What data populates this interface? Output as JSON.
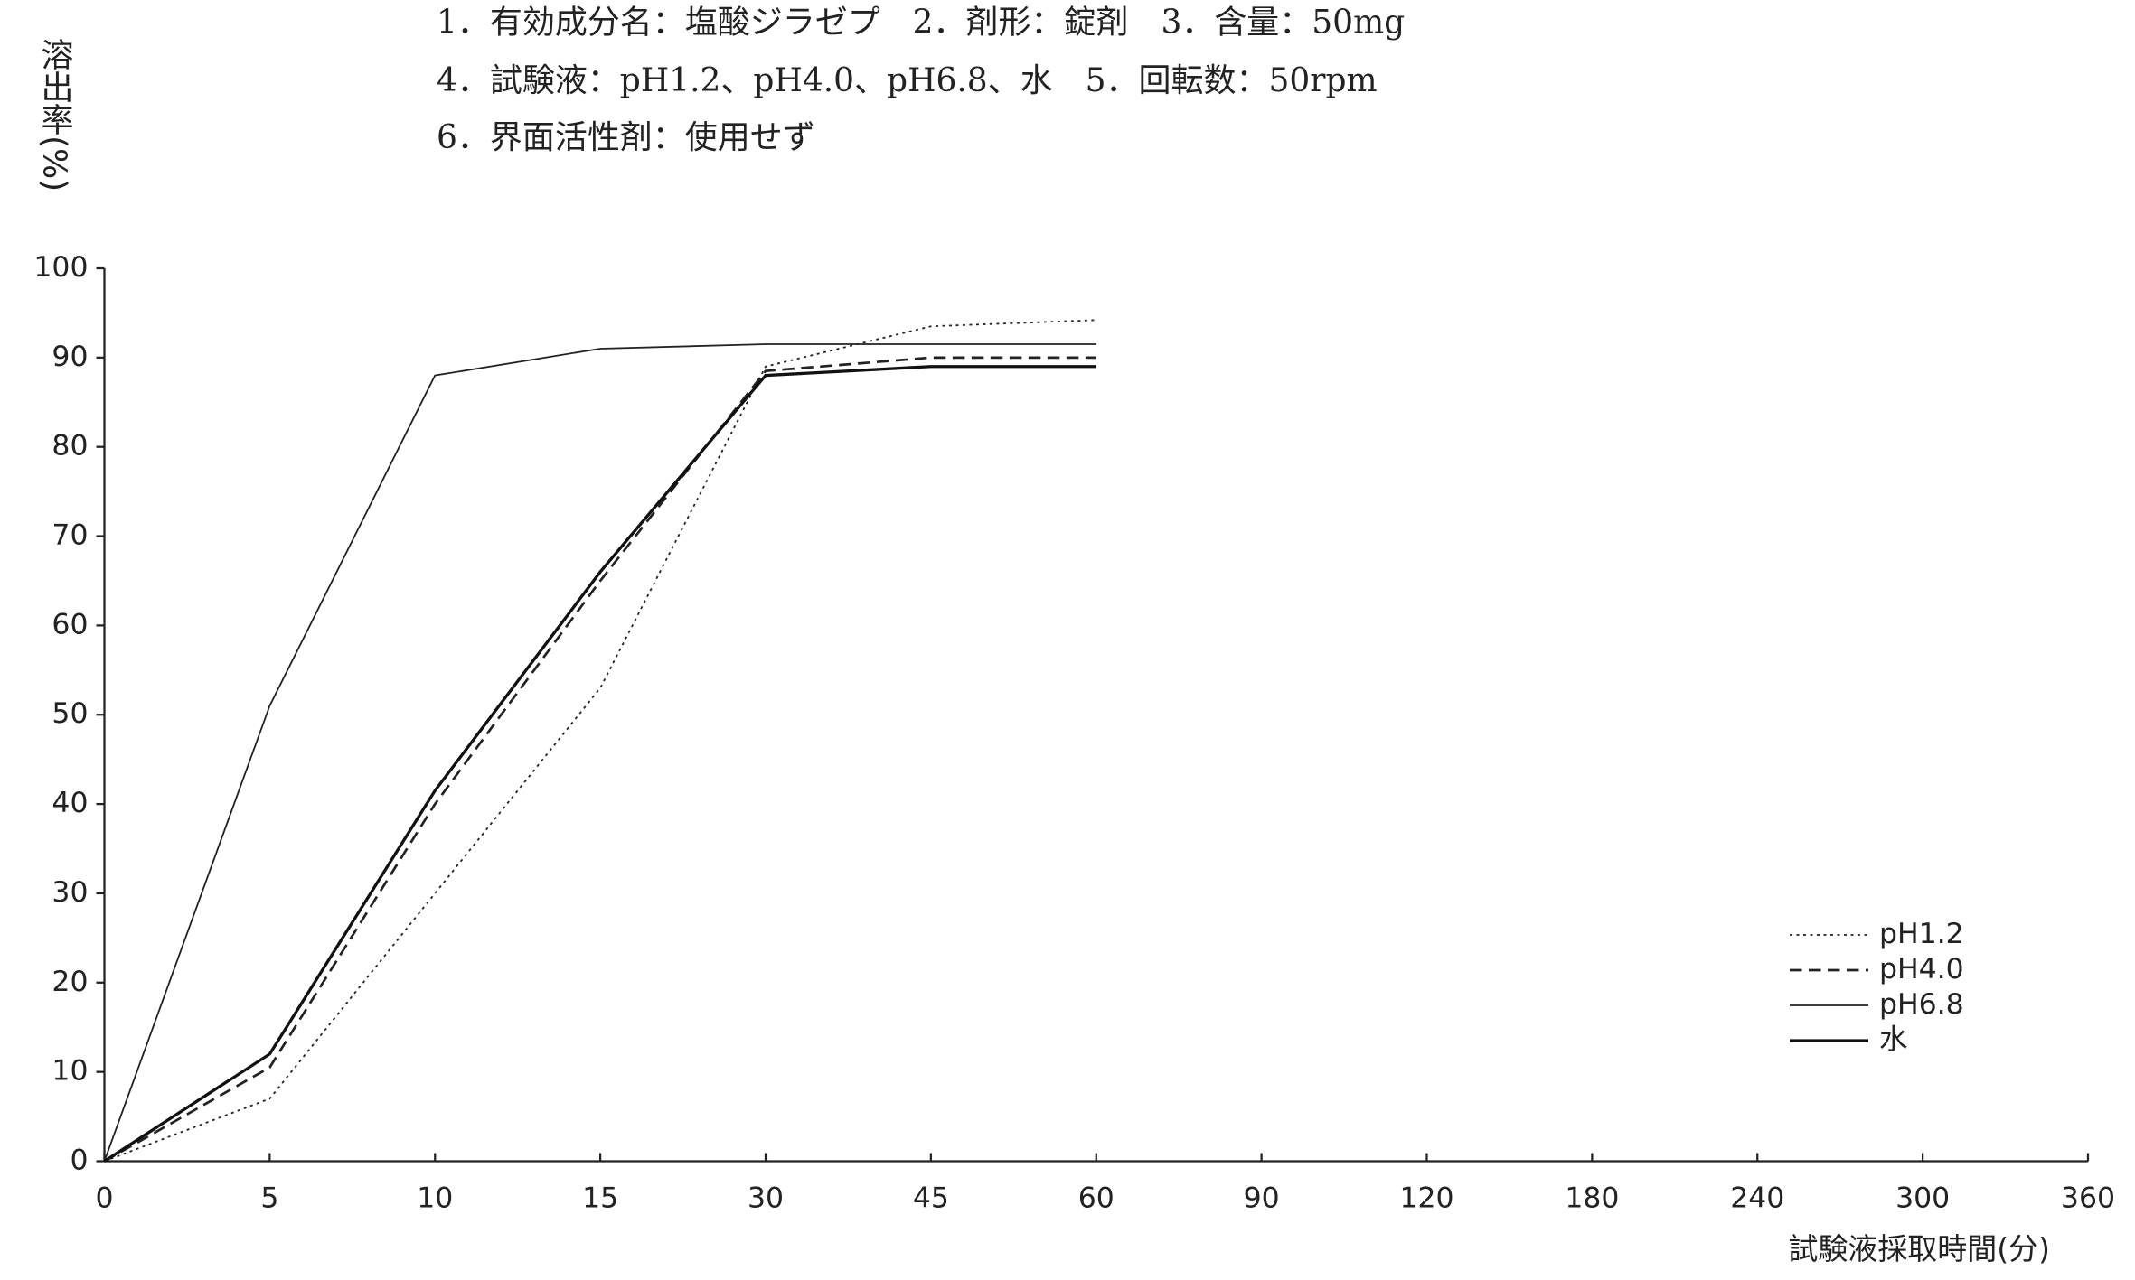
{
  "chart_data": {
    "type": "line",
    "title_lines": [
      "1．有効成分名：塩酸ジラゼプ　2．剤形：錠剤　3．含量：50mg",
      "4．試験液：pH1.2、pH4.0、pH6.8、水　5．回転数：50rpm",
      "6．界面活性剤：使用せず"
    ],
    "ylabel": "溶出率(%)",
    "xlabel": "試験液採取時間(分)",
    "categories": [
      "0",
      "5",
      "10",
      "15",
      "30",
      "45",
      "60",
      "90",
      "120",
      "180",
      "240",
      "300",
      "360"
    ],
    "series": [
      {
        "name": "pH1.2",
        "color": "#222222",
        "style": "dotted",
        "values": [
          0,
          7,
          30,
          53,
          89,
          93.5,
          94.2,
          null,
          null,
          null,
          null,
          null,
          null
        ]
      },
      {
        "name": "pH4.0",
        "color": "#222222",
        "style": "dashed",
        "values": [
          0,
          10.5,
          40,
          65,
          88.5,
          90,
          90,
          null,
          null,
          null,
          null,
          null,
          null
        ]
      },
      {
        "name": "pH6.8",
        "color": "#222222",
        "style": "solid",
        "values": [
          0,
          51,
          88,
          91,
          91.5,
          91.5,
          91.5,
          null,
          null,
          null,
          null,
          null,
          null
        ]
      },
      {
        "name": "水",
        "color": "#111111",
        "style": "bold",
        "values": [
          0,
          12,
          41.5,
          66,
          88,
          89,
          89,
          null,
          null,
          null,
          null,
          null,
          null
        ]
      }
    ],
    "ylim": [
      0,
      100
    ],
    "yticks": [
      0,
      10,
      20,
      30,
      40,
      50,
      60,
      70,
      80,
      90,
      100
    ],
    "legend": "lower right"
  }
}
